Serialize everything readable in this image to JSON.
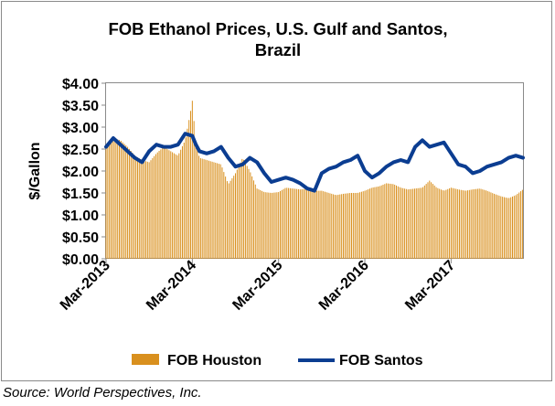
{
  "chart_data": {
    "type": "bar+line",
    "title_line1": "FOB Ethanol Prices, U.S. Gulf and Santos,",
    "title_line2": "Brazil",
    "ylabel": "$/Gallon",
    "ylim": [
      0,
      4
    ],
    "yticks": [
      "$0.00",
      "$0.50",
      "$1.00",
      "$1.50",
      "$2.00",
      "$2.50",
      "$3.00",
      "$3.50",
      "$4.00"
    ],
    "ytick_values": [
      0,
      0.5,
      1.0,
      1.5,
      2.0,
      2.5,
      3.0,
      3.5,
      4.0
    ],
    "xlim_months": [
      0,
      58
    ],
    "xticks": [
      "Mar-2013",
      "Mar-2014",
      "Mar-2015",
      "Mar-2016",
      "Mar-2017"
    ],
    "xtick_months": [
      0,
      12,
      24,
      36,
      48
    ],
    "series": [
      {
        "name": "FOB Houston",
        "kind": "bar",
        "color": "#d9901e",
        "points": [
          [
            0,
            2.55
          ],
          [
            1,
            2.75
          ],
          [
            2,
            2.7
          ],
          [
            3,
            2.55
          ],
          [
            4,
            2.35
          ],
          [
            5,
            2.25
          ],
          [
            6,
            2.2
          ],
          [
            7,
            2.4
          ],
          [
            8,
            2.55
          ],
          [
            9,
            2.45
          ],
          [
            10,
            2.35
          ],
          [
            11,
            2.7
          ],
          [
            11.7,
            3.3
          ],
          [
            12,
            3.6
          ],
          [
            12.5,
            2.6
          ],
          [
            13,
            2.3
          ],
          [
            14,
            2.25
          ],
          [
            15,
            2.2
          ],
          [
            16,
            2.15
          ],
          [
            17,
            1.7
          ],
          [
            18,
            1.95
          ],
          [
            19,
            2.3
          ],
          [
            20,
            2.0
          ],
          [
            21,
            1.6
          ],
          [
            22,
            1.52
          ],
          [
            23,
            1.5
          ],
          [
            24,
            1.52
          ],
          [
            25,
            1.62
          ],
          [
            26,
            1.6
          ],
          [
            27,
            1.58
          ],
          [
            28,
            1.6
          ],
          [
            29,
            1.55
          ],
          [
            30,
            1.55
          ],
          [
            31,
            1.5
          ],
          [
            32,
            1.45
          ],
          [
            33,
            1.48
          ],
          [
            34,
            1.5
          ],
          [
            35,
            1.5
          ],
          [
            36,
            1.55
          ],
          [
            37,
            1.62
          ],
          [
            38,
            1.65
          ],
          [
            39,
            1.72
          ],
          [
            40,
            1.7
          ],
          [
            41,
            1.62
          ],
          [
            42,
            1.58
          ],
          [
            43,
            1.6
          ],
          [
            44,
            1.62
          ],
          [
            45,
            1.78
          ],
          [
            46,
            1.62
          ],
          [
            47,
            1.55
          ],
          [
            48,
            1.62
          ],
          [
            49,
            1.58
          ],
          [
            50,
            1.55
          ],
          [
            51,
            1.58
          ],
          [
            52,
            1.6
          ],
          [
            53,
            1.55
          ],
          [
            54,
            1.48
          ],
          [
            55,
            1.42
          ],
          [
            56,
            1.38
          ],
          [
            57,
            1.45
          ],
          [
            58,
            1.58
          ]
        ]
      },
      {
        "name": "FOB Santos",
        "kind": "line",
        "color": "#0b3d91",
        "points": [
          [
            0,
            2.55
          ],
          [
            1,
            2.75
          ],
          [
            2,
            2.6
          ],
          [
            3,
            2.45
          ],
          [
            4,
            2.3
          ],
          [
            5,
            2.2
          ],
          [
            6,
            2.45
          ],
          [
            7,
            2.6
          ],
          [
            8,
            2.55
          ],
          [
            9,
            2.55
          ],
          [
            10,
            2.6
          ],
          [
            11,
            2.85
          ],
          [
            12,
            2.8
          ],
          [
            12.5,
            2.6
          ],
          [
            13,
            2.45
          ],
          [
            14,
            2.4
          ],
          [
            15,
            2.45
          ],
          [
            16,
            2.55
          ],
          [
            17,
            2.3
          ],
          [
            18,
            2.1
          ],
          [
            19,
            2.15
          ],
          [
            20,
            2.3
          ],
          [
            21,
            2.2
          ],
          [
            22,
            1.95
          ],
          [
            23,
            1.75
          ],
          [
            24,
            1.8
          ],
          [
            25,
            1.85
          ],
          [
            26,
            1.8
          ],
          [
            27,
            1.72
          ],
          [
            28,
            1.6
          ],
          [
            29,
            1.55
          ],
          [
            30,
            1.95
          ],
          [
            31,
            2.05
          ],
          [
            32,
            2.1
          ],
          [
            33,
            2.2
          ],
          [
            34,
            2.25
          ],
          [
            35,
            2.35
          ],
          [
            36,
            2.0
          ],
          [
            37,
            1.85
          ],
          [
            38,
            1.95
          ],
          [
            39,
            2.1
          ],
          [
            40,
            2.2
          ],
          [
            41,
            2.25
          ],
          [
            42,
            2.2
          ],
          [
            43,
            2.55
          ],
          [
            44,
            2.7
          ],
          [
            45,
            2.55
          ],
          [
            46,
            2.6
          ],
          [
            47,
            2.65
          ],
          [
            48,
            2.4
          ],
          [
            49,
            2.15
          ],
          [
            50,
            2.1
          ],
          [
            51,
            1.95
          ],
          [
            52,
            2.0
          ],
          [
            53,
            2.1
          ],
          [
            54,
            2.15
          ],
          [
            55,
            2.2
          ],
          [
            56,
            2.3
          ],
          [
            57,
            2.35
          ],
          [
            58,
            2.3
          ]
        ]
      }
    ],
    "legend": {
      "position": "bottom",
      "items": [
        {
          "label": "FOB Houston",
          "kind": "bar",
          "color": "#d9901e"
        },
        {
          "label": "FOB Santos",
          "kind": "line",
          "color": "#0b3d91"
        }
      ]
    },
    "gridlines": false,
    "plot_background": "#ffffff"
  },
  "source": "Source: World Perspectives, Inc."
}
